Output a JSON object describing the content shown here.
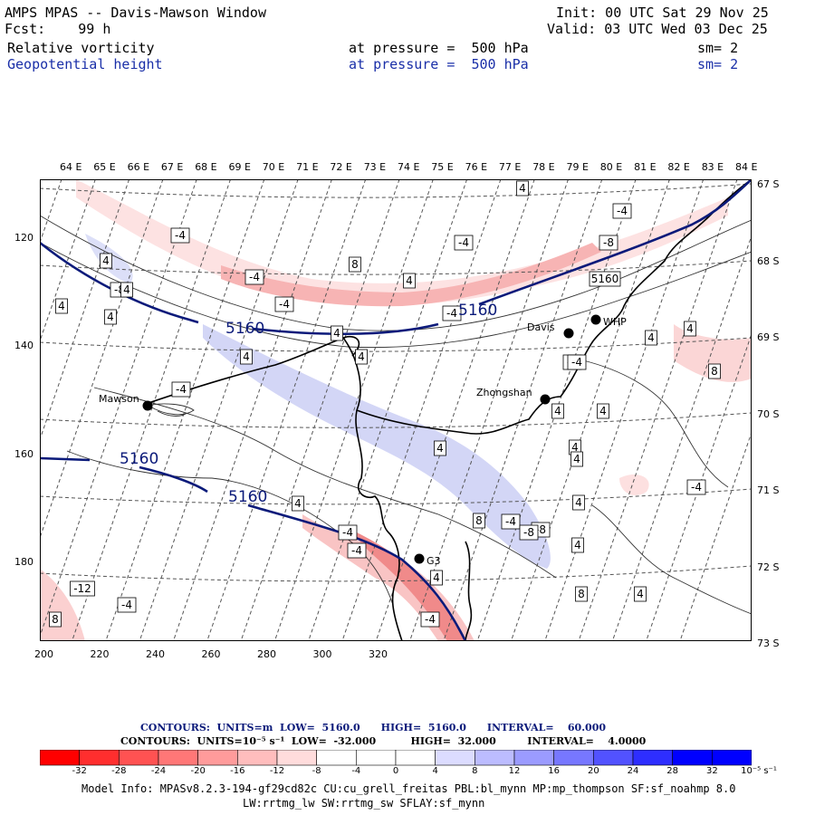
{
  "header": {
    "title": "AMPS MPAS -- Davis-Mawson Window",
    "fcst": "Fcst:    99 h",
    "init": "Init: 00 UTC Sat 29 Nov 25",
    "valid": "Valid: 03 UTC Wed 03 Dec 25",
    "field1": {
      "name": "Relative vorticity",
      "level": "at pressure =  500 hPa",
      "sm": "sm= 2"
    },
    "field2": {
      "name": "Geopotential height",
      "level": "at pressure =  500 hPa",
      "sm": "sm= 2"
    }
  },
  "map": {
    "lon_labels": [
      "64 E",
      "65 E",
      "66 E",
      "67 E",
      "68 E",
      "69 E",
      "70 E",
      "71 E",
      "72 E",
      "73 E",
      "74 E",
      "75 E",
      "76 E",
      "77 E",
      "78 E",
      "79 E",
      "80 E",
      "81 E",
      "82 E",
      "83 E",
      "84 E"
    ],
    "lat_labels": [
      "67 S",
      "68 S",
      "69 S",
      "70 S",
      "71 S",
      "72 S",
      "73 S"
    ],
    "x_ticks": [
      "200",
      "220",
      "240",
      "260",
      "280",
      "300",
      "320"
    ],
    "y_ticks": [
      "120",
      "140",
      "160",
      "180"
    ],
    "stations": [
      {
        "name": "Davis"
      },
      {
        "name": "WHP"
      },
      {
        "name": "Zhongshan"
      },
      {
        "name": "Mawson"
      },
      {
        "name": "G3"
      }
    ],
    "height_labels": [
      "5160",
      "5160",
      "5160",
      "5160"
    ],
    "vort_labels": [
      "4",
      "-4",
      "-4",
      "-4",
      "4",
      "-4",
      "8",
      "4",
      "-8",
      "-4",
      "-4",
      "-8",
      "5160",
      "4",
      "4",
      "4",
      "4",
      "4",
      "4",
      "-4",
      "-8",
      "4",
      "-4",
      "8",
      "4",
      "4",
      "4",
      "-4",
      "4",
      "4",
      "4",
      "-4",
      "4",
      "8",
      "-4",
      "-8",
      "4",
      "8",
      "4",
      "4",
      "-12",
      "-4",
      "8",
      "-4",
      "-4",
      "-8",
      "4"
    ],
    "colors": {
      "height_line": "#0b1a7a",
      "neg_fill": "#f6b0b0",
      "pos_fill": "#c8ccf4"
    }
  },
  "legend": {
    "height": {
      "label": "CONTOURS:  UNITS=m  LOW=  5160.0      HIGH=  5160.0      INTERVAL=    60.000"
    },
    "vort": {
      "label": "CONTOURS:  UNITS=10⁻⁵ s⁻¹  LOW=  -32.000          HIGH=  32.000         INTERVAL=    4.0000"
    },
    "colorbar_ticks": [
      "-32",
      "-28",
      "-24",
      "-20",
      "-16",
      "-12",
      "-8",
      "-4",
      "0",
      "4",
      "8",
      "12",
      "16",
      "20",
      "24",
      "28",
      "32"
    ],
    "colorbar_units": "10⁻⁵ s⁻¹",
    "colorbar_colors": [
      "#ff0000",
      "#ff2e2e",
      "#ff5252",
      "#ff7777",
      "#ff9b9b",
      "#ffbdbd",
      "#ffdcdc",
      "#ffffff",
      "#ffffff",
      "#ffffff",
      "#dcdcff",
      "#bcbcff",
      "#9b9bff",
      "#7777ff",
      "#5252ff",
      "#2e2eff",
      "#0000ff",
      "#0000ff"
    ]
  },
  "model_info": {
    "line1": "Model Info: MPASv8.2.3-194-gf29cd82c CU:cu_grell_freitas PBL:bl_mynn MP:mp_thompson SF:sf_noahmp 8.0",
    "line2": "LW:rrtmg_lw SW:rrtmg_sw SFLAY:sf_mynn"
  }
}
